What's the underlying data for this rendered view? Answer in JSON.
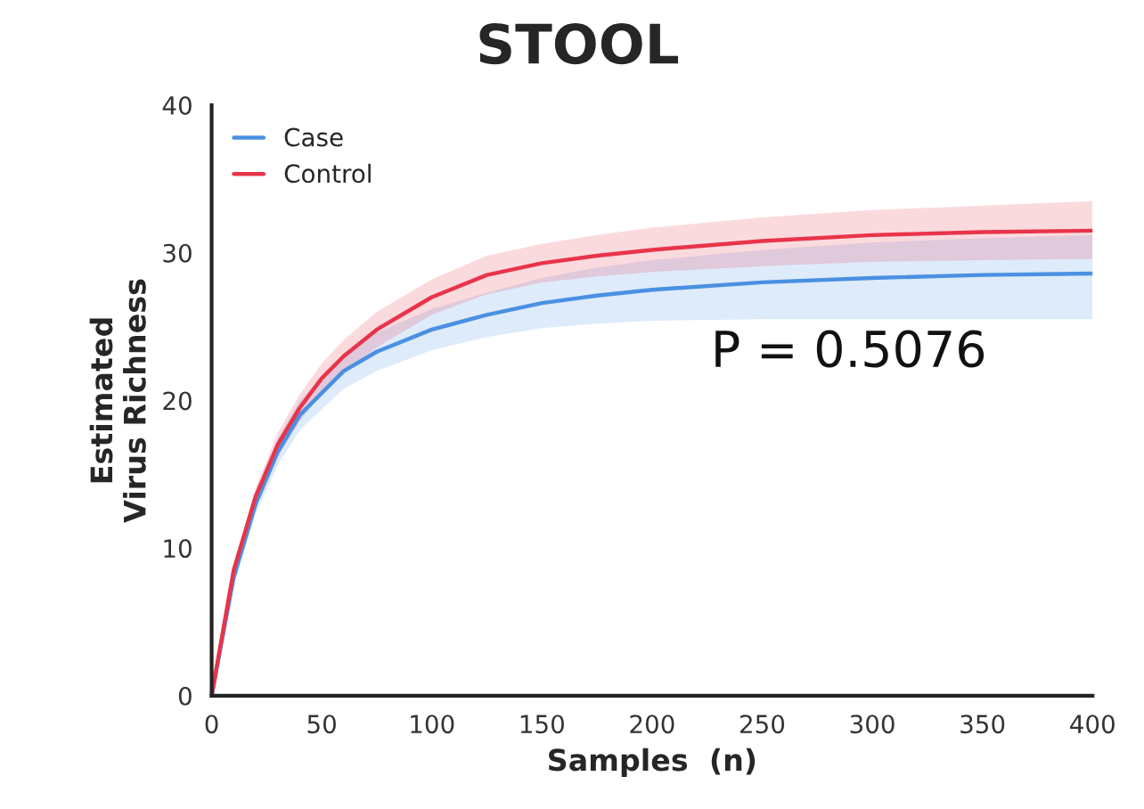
{
  "chart_data": {
    "type": "line",
    "title": "STOOL",
    "xlabel": "Samples  (n)",
    "ylabel": "Estimated\nVirus Richness",
    "x": [
      0,
      10,
      20,
      30,
      40,
      50,
      60,
      75,
      100,
      125,
      150,
      175,
      200,
      250,
      300,
      350,
      400
    ],
    "series": [
      {
        "name": "Case",
        "color": "#4a90e2",
        "values": [
          0,
          8,
          13,
          16.5,
          19,
          20.5,
          22,
          23.3,
          24.8,
          25.8,
          26.6,
          27.1,
          27.5,
          28,
          28.3,
          28.5,
          28.6
        ],
        "lower": [
          0,
          7.5,
          12.3,
          15.6,
          18,
          19.4,
          20.8,
          22,
          23.4,
          24.3,
          24.9,
          25.2,
          25.4,
          25.5,
          25.5,
          25.5,
          25.5
        ],
        "upper": [
          0,
          8.5,
          13.7,
          17.4,
          20,
          21.6,
          23.2,
          24.6,
          26.2,
          27.3,
          28.3,
          29,
          29.5,
          30.2,
          30.7,
          31,
          31.2
        ]
      },
      {
        "name": "Control",
        "color": "#e8344a",
        "values": [
          0,
          8.5,
          13.5,
          17,
          19.5,
          21.5,
          23,
          24.8,
          27,
          28.5,
          29.3,
          29.8,
          30.2,
          30.8,
          31.2,
          31.4,
          31.5
        ],
        "lower": [
          0,
          8.1,
          12.9,
          16.2,
          18.6,
          20.5,
          21.9,
          23.6,
          25.8,
          27.2,
          28,
          28.4,
          28.7,
          29.1,
          29.4,
          29.5,
          29.6
        ],
        "upper": [
          0,
          8.9,
          14.1,
          17.8,
          20.4,
          22.5,
          24.1,
          26,
          28.2,
          29.8,
          30.6,
          31.2,
          31.7,
          32.4,
          32.9,
          33.2,
          33.5
        ]
      }
    ],
    "xlim": [
      0,
      400
    ],
    "xticks": [
      0,
      50,
      100,
      150,
      200,
      250,
      300,
      350,
      400
    ],
    "ylim": [
      0,
      40
    ],
    "yticks": [
      0,
      10,
      20,
      30,
      40
    ],
    "annotations": [
      "P = 0.5076"
    ],
    "legend": "top left",
    "grid": false,
    "marker": "none",
    "line_style": "solid"
  }
}
